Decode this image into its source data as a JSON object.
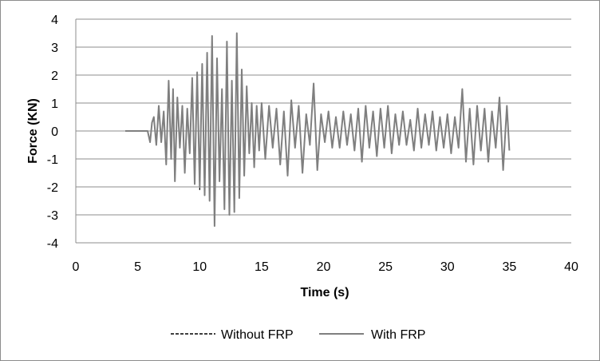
{
  "chart_data": {
    "type": "line",
    "xlabel": "Time (s)",
    "ylabel": "Force (KN)",
    "xlim": [
      0,
      40
    ],
    "ylim": [
      -4,
      4
    ],
    "xticks": [
      0,
      5,
      10,
      15,
      20,
      25,
      30,
      35,
      40
    ],
    "yticks": [
      -4,
      -3,
      -2,
      -1,
      0,
      1,
      2,
      3,
      4
    ],
    "grid": "horizontal",
    "legend_position": "bottom",
    "series": [
      {
        "name": "Without FRP",
        "style": "dashed",
        "color": "#000000",
        "x": [
          4,
          5,
          5.8,
          6.0,
          6.15,
          6.3,
          6.5,
          6.7,
          6.9,
          7.1,
          7.3,
          7.5,
          7.7,
          7.85,
          8.0,
          8.2,
          8.4,
          8.6,
          8.8,
          9.0,
          9.2,
          9.4,
          9.6,
          9.8,
          10.0,
          10.2,
          10.4,
          10.6,
          10.8,
          11.0,
          11.2,
          11.4,
          11.6,
          11.8,
          12.0,
          12.2,
          12.4,
          12.6,
          12.8,
          13.0,
          13.2,
          13.4,
          13.6,
          13.8,
          14.0,
          14.2,
          14.4,
          14.6,
          14.8,
          15.0,
          15.3,
          15.6,
          15.9,
          16.2,
          16.5,
          16.8,
          17.1,
          17.4,
          17.7,
          18.0,
          18.3,
          18.6,
          18.9,
          19.2,
          19.5,
          19.8,
          20.1,
          20.4,
          20.7,
          21.0,
          21.3,
          21.6,
          21.9,
          22.2,
          22.5,
          22.8,
          23.1,
          23.4,
          23.7,
          24.0,
          24.3,
          24.6,
          24.9,
          25.2,
          25.5,
          25.8,
          26.1,
          26.4,
          26.7,
          27.0,
          27.3,
          27.6,
          27.9,
          28.2,
          28.5,
          28.8,
          29.1,
          29.4,
          29.7,
          30.0,
          30.3,
          30.6,
          30.9,
          31.2,
          31.5,
          31.8,
          32.1,
          32.4,
          32.7,
          33.0,
          33.3,
          33.6,
          33.9,
          34.2,
          34.5,
          34.8,
          35.0
        ],
        "y": [
          0,
          0,
          0,
          -0.4,
          0.3,
          0.5,
          -0.5,
          0.9,
          -0.4,
          0.7,
          -1.2,
          1.7,
          -1.0,
          1.5,
          -1.8,
          1.2,
          -0.6,
          0.9,
          -1.5,
          0.8,
          -0.8,
          1.9,
          -1.9,
          2.0,
          -2.1,
          2.4,
          -2.3,
          2.8,
          -2.5,
          3.4,
          -3.4,
          2.6,
          -1.8,
          1.5,
          -2.8,
          3.2,
          -3.0,
          1.8,
          -2.9,
          3.5,
          -2.4,
          2.2,
          -1.6,
          1.6,
          -0.8,
          1.0,
          -1.3,
          0.9,
          -0.7,
          1.0,
          -1.0,
          0.9,
          -0.6,
          0.8,
          -1.2,
          0.7,
          -1.6,
          1.1,
          -0.6,
          0.9,
          -1.5,
          0.6,
          -0.5,
          1.7,
          -1.4,
          0.6,
          -0.4,
          0.7,
          -0.6,
          0.5,
          -0.6,
          0.7,
          -0.5,
          0.6,
          -0.7,
          0.8,
          -1.1,
          0.9,
          -0.6,
          0.7,
          -0.9,
          0.8,
          -0.6,
          0.9,
          -0.8,
          0.6,
          -0.5,
          0.7,
          -0.5,
          0.4,
          -0.7,
          0.8,
          -0.6,
          0.6,
          -0.5,
          0.7,
          -0.7,
          0.5,
          -0.6,
          0.6,
          -0.8,
          0.5,
          -0.6,
          1.5,
          -1.1,
          0.8,
          -1.2,
          0.9,
          -0.7,
          0.8,
          -1.1,
          0.7,
          -0.6,
          1.2,
          -1.4,
          0.9,
          -0.7
        ]
      },
      {
        "name": "With FRP",
        "style": "solid",
        "color": "#7f7f7f",
        "x": [
          4,
          5,
          5.8,
          6.0,
          6.15,
          6.3,
          6.5,
          6.7,
          6.9,
          7.1,
          7.3,
          7.5,
          7.7,
          7.85,
          8.0,
          8.2,
          8.4,
          8.6,
          8.8,
          9.0,
          9.2,
          9.4,
          9.6,
          9.8,
          10.0,
          10.2,
          10.4,
          10.6,
          10.8,
          11.0,
          11.2,
          11.4,
          11.6,
          11.8,
          12.0,
          12.2,
          12.4,
          12.6,
          12.8,
          13.0,
          13.2,
          13.4,
          13.6,
          13.8,
          14.0,
          14.2,
          14.4,
          14.6,
          14.8,
          15.0,
          15.3,
          15.6,
          15.9,
          16.2,
          16.5,
          16.8,
          17.1,
          17.4,
          17.7,
          18.0,
          18.3,
          18.6,
          18.9,
          19.2,
          19.5,
          19.8,
          20.1,
          20.4,
          20.7,
          21.0,
          21.3,
          21.6,
          21.9,
          22.2,
          22.5,
          22.8,
          23.1,
          23.4,
          23.7,
          24.0,
          24.3,
          24.6,
          24.9,
          25.2,
          25.5,
          25.8,
          26.1,
          26.4,
          26.7,
          27.0,
          27.3,
          27.6,
          27.9,
          28.2,
          28.5,
          28.8,
          29.1,
          29.4,
          29.7,
          30.0,
          30.3,
          30.6,
          30.9,
          31.2,
          31.5,
          31.8,
          32.1,
          32.4,
          32.7,
          33.0,
          33.3,
          33.6,
          33.9,
          34.2,
          34.5,
          34.8,
          35.0
        ],
        "y": [
          0,
          0,
          0,
          -0.4,
          0.3,
          0.5,
          -0.5,
          0.9,
          -0.4,
          0.7,
          -1.2,
          1.8,
          -1.0,
          1.5,
          -1.8,
          1.2,
          -0.6,
          0.9,
          -1.5,
          0.8,
          -0.8,
          1.9,
          -1.9,
          2.1,
          -2.0,
          2.4,
          -2.3,
          2.8,
          -2.5,
          3.4,
          -3.4,
          2.6,
          -1.8,
          1.5,
          -2.8,
          3.2,
          -3.0,
          1.8,
          -2.9,
          3.5,
          -2.4,
          2.2,
          -1.6,
          1.6,
          -0.8,
          1.0,
          -1.3,
          0.9,
          -0.7,
          1.0,
          -1.0,
          0.9,
          -0.6,
          0.8,
          -1.2,
          0.7,
          -1.6,
          1.1,
          -0.6,
          0.9,
          -1.5,
          0.6,
          -0.5,
          1.7,
          -1.4,
          0.6,
          -0.4,
          0.7,
          -0.6,
          0.5,
          -0.6,
          0.7,
          -0.5,
          0.6,
          -0.7,
          0.8,
          -1.1,
          0.9,
          -0.6,
          0.7,
          -0.9,
          0.8,
          -0.6,
          0.9,
          -0.8,
          0.6,
          -0.5,
          0.7,
          -0.5,
          0.4,
          -0.7,
          0.8,
          -0.6,
          0.6,
          -0.5,
          0.7,
          -0.7,
          0.5,
          -0.6,
          0.6,
          -0.8,
          0.5,
          -0.6,
          1.5,
          -1.1,
          0.8,
          -1.2,
          0.9,
          -0.7,
          0.8,
          -1.1,
          0.7,
          -0.6,
          1.2,
          -1.4,
          0.9,
          -0.7
        ]
      }
    ]
  }
}
